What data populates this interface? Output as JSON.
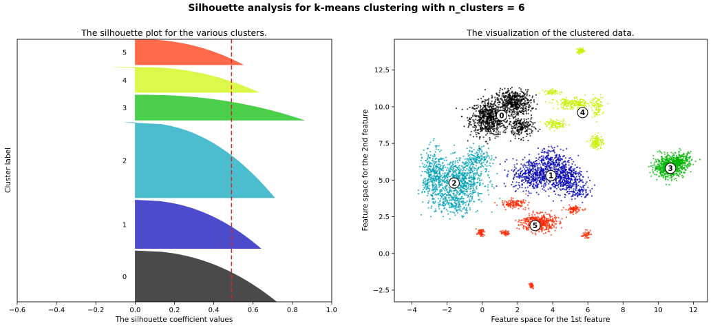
{
  "suptitle": "Silhouette analysis for k-means clustering with n_clusters = 6",
  "chart_data": [
    {
      "type": "area",
      "title": "The silhouette plot for the various clusters.",
      "xlabel": "The silhouette coefficient values",
      "ylabel": "Cluster label",
      "xlim": [
        -0.6,
        1.0
      ],
      "xticks": [
        "−0.6",
        "−0.4",
        "−0.2",
        "0.0",
        "0.2",
        "0.4",
        "0.6",
        "0.8",
        "1.0"
      ],
      "xtick_values": [
        -0.6,
        -0.4,
        -0.2,
        0.0,
        0.2,
        0.4,
        0.6,
        0.8,
        1.0
      ],
      "average_silhouette": 0.49,
      "clusters": [
        {
          "label": "0",
          "color": "#4a4a4a",
          "size": 0.2,
          "min": 0.0,
          "max": 0.72
        },
        {
          "label": "1",
          "color": "#4b4bcc",
          "size": 0.19,
          "min": 0.0,
          "max": 0.64
        },
        {
          "label": "2",
          "color": "#4bbdcf",
          "size": 0.295,
          "min": -0.05,
          "max": 0.71
        },
        {
          "label": "3",
          "color": "#4bcf4b",
          "size": 0.1,
          "min": 0.0,
          "max": 0.86
        },
        {
          "label": "4",
          "color": "#dcf84a",
          "size": 0.1,
          "min": -0.11,
          "max": 0.63
        },
        {
          "label": "5",
          "color": "#ff6a4a",
          "size": 0.1,
          "min": -0.09,
          "max": 0.55
        }
      ],
      "grid": false
    },
    {
      "type": "scatter",
      "title": "The visualization of the clustered data.",
      "xlabel": "Feature space for the 1st feature",
      "ylabel": "Feature space for the 2nd feature",
      "xlim": [
        -5,
        12.8
      ],
      "ylim": [
        -3.3,
        14.6
      ],
      "xticks": [
        "−4",
        "−2",
        "0",
        "2",
        "4",
        "6",
        "8",
        "10",
        "12"
      ],
      "xtick_values": [
        -4,
        -2,
        0,
        2,
        4,
        6,
        8,
        10,
        12
      ],
      "yticks": [
        "−2.5",
        "0.0",
        "2.5",
        "5.0",
        "7.5",
        "10.0",
        "12.5"
      ],
      "ytick_values": [
        -2.5,
        0.0,
        2.5,
        5.0,
        7.5,
        10.0,
        12.5
      ],
      "grid": false,
      "clusters": [
        {
          "label": "0",
          "color": "#000000",
          "center": [
            1.1,
            9.4
          ],
          "blobs": [
            [
              0.4,
              9.2,
              0.9,
              1.0,
              700
            ],
            [
              1.8,
              10.3,
              0.8,
              0.7,
              500
            ],
            [
              2.2,
              8.6,
              0.6,
              0.6,
              200
            ]
          ]
        },
        {
          "label": "1",
          "color": "#0000b4",
          "center": [
            3.9,
            5.3
          ],
          "blobs": [
            [
              3.0,
              5.4,
              1.1,
              0.9,
              500
            ],
            [
              4.6,
              5.2,
              0.9,
              0.9,
              450
            ],
            [
              4.0,
              6.5,
              0.7,
              0.6,
              150
            ],
            [
              5.5,
              4.2,
              0.5,
              0.4,
              80
            ]
          ]
        },
        {
          "label": "2",
          "color": "#00a0b4",
          "center": [
            -1.6,
            4.8
          ],
          "blobs": [
            [
              -1.3,
              5.0,
              1.2,
              1.2,
              700
            ],
            [
              -2.8,
              5.2,
              0.5,
              1.6,
              350
            ],
            [
              -1.5,
              3.5,
              0.9,
              0.7,
              200
            ],
            [
              -0.2,
              6.5,
              0.6,
              0.7,
              150
            ]
          ]
        },
        {
          "label": "3",
          "color": "#00b400",
          "center": [
            10.7,
            5.8
          ],
          "blobs": [
            [
              10.6,
              5.9,
              0.7,
              0.6,
              600
            ],
            [
              11.3,
              6.3,
              0.5,
              0.5,
              200
            ]
          ]
        },
        {
          "label": "4",
          "color": "#c8f000",
          "center": [
            5.7,
            9.6
          ],
          "blobs": [
            [
              5.2,
              10.2,
              0.9,
              0.3,
              200
            ],
            [
              6.5,
              7.6,
              0.3,
              0.4,
              120
            ],
            [
              4.2,
              8.8,
              0.5,
              0.25,
              100
            ],
            [
              5.6,
              13.8,
              0.2,
              0.15,
              60
            ],
            [
              4.0,
              11.0,
              0.4,
              0.15,
              50
            ],
            [
              6.5,
              10.0,
              0.3,
              0.6,
              80
            ]
          ]
        },
        {
          "label": "5",
          "color": "#ff2800",
          "center": [
            3.0,
            1.9
          ],
          "blobs": [
            [
              3.2,
              2.1,
              0.8,
              0.5,
              450
            ],
            [
              1.8,
              3.4,
              0.6,
              0.25,
              120
            ],
            [
              5.2,
              3.0,
              0.4,
              0.2,
              80
            ],
            [
              2.8,
              -2.2,
              0.1,
              0.15,
              30
            ],
            [
              -0.1,
              1.4,
              0.2,
              0.2,
              50
            ],
            [
              1.3,
              1.4,
              0.2,
              0.15,
              40
            ],
            [
              5.9,
              1.3,
              0.2,
              0.2,
              40
            ]
          ]
        }
      ]
    }
  ]
}
